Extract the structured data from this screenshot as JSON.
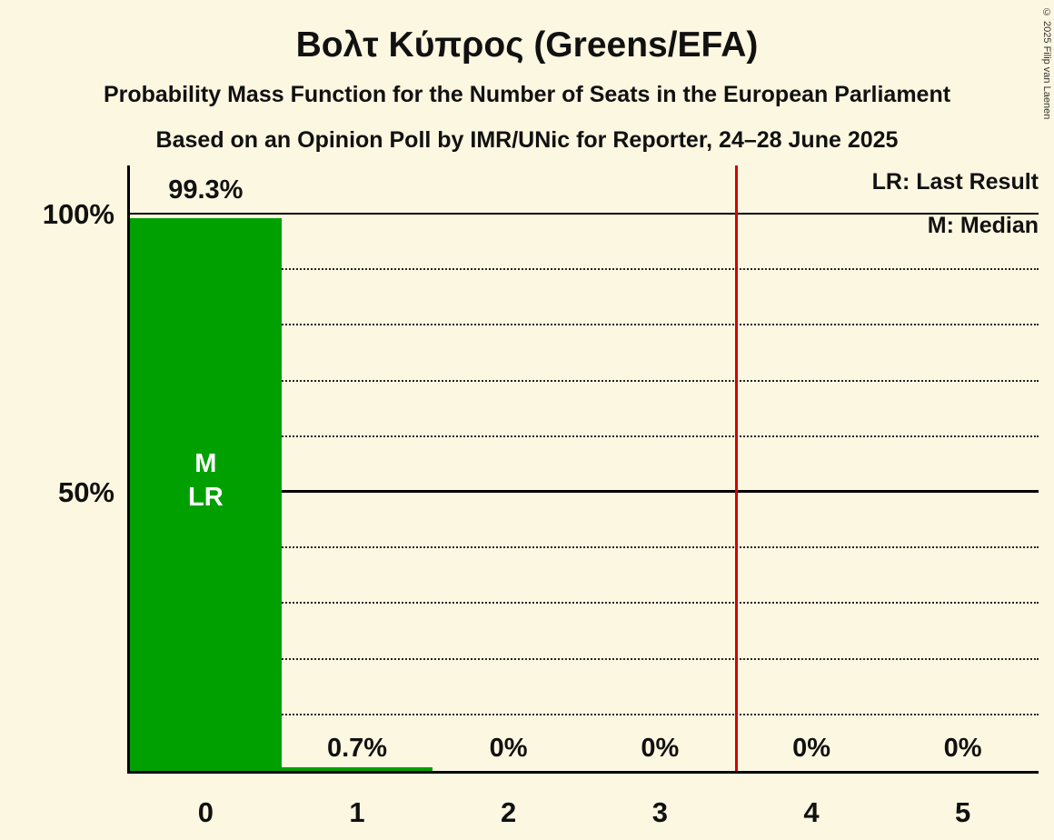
{
  "background_color": "#fcf7e0",
  "title": "Βολτ Κύπρος (Greens/EFA)",
  "subtitle": "Probability Mass Function for the Number of Seats in the European Parliament",
  "poll_info": "Based on an Opinion Poll by IMR/UNic for Reporter, 24–28 June 2025",
  "copyright": "© 2025 Filip van Laenen",
  "legend": {
    "last_result": "LR: Last Result",
    "median": "M: Median"
  },
  "y_axis": {
    "tick_100": "100%",
    "tick_50": "50%"
  },
  "chart_data": {
    "type": "bar",
    "title": "Βολτ Κύπρος (Greens/EFA)",
    "categories": [
      "0",
      "1",
      "2",
      "3",
      "4",
      "5"
    ],
    "values": [
      99.3,
      0.7,
      0,
      0,
      0,
      0
    ],
    "value_labels": [
      "99.3%",
      "0.7%",
      "0%",
      "0%",
      "0%",
      "0%"
    ],
    "bar_color": "#00a000",
    "bar0_annotation": [
      "M",
      "LR"
    ],
    "median_seats": 0,
    "last_result_seats": 0,
    "majority_threshold_x": 3.5,
    "majority_line_color": "#d40000",
    "ylim": [
      0,
      100
    ],
    "yticks_labeled": [
      100,
      50
    ],
    "gridlines_percent": [
      10,
      20,
      30,
      40,
      50,
      60,
      70,
      80,
      90,
      100
    ],
    "grid_style": "dotted horizontal, solid at 50% and 100%",
    "legend_position": "top-right"
  }
}
